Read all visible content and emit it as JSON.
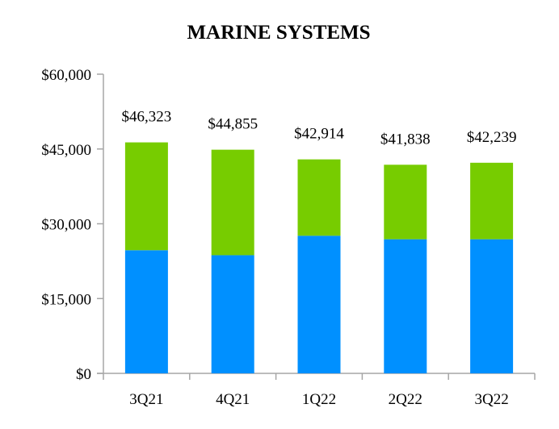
{
  "chart_data": {
    "type": "bar",
    "stacked": true,
    "title": "MARINE SYSTEMS",
    "xlabel": "",
    "ylabel": "",
    "categories": [
      "3Q21",
      "4Q21",
      "1Q22",
      "2Q22",
      "3Q22"
    ],
    "series": [
      {
        "color": "#0090ff",
        "values": [
          24700,
          23700,
          27600,
          26900,
          26900
        ]
      },
      {
        "color": "#77cc00",
        "values": [
          21623,
          21155,
          15314,
          14938,
          15339
        ]
      }
    ],
    "totals": [
      46323,
      44855,
      42914,
      41838,
      42239
    ],
    "total_labels": [
      "$46,323",
      "$44,855",
      "$42,914",
      "$41,838",
      "$42,239"
    ],
    "ylim": [
      0,
      60000
    ],
    "yticks": [
      0,
      15000,
      30000,
      45000,
      60000
    ],
    "ytick_labels": [
      "$0",
      "$15,000",
      "$30,000",
      "$45,000",
      "$60,000"
    ],
    "grid": false,
    "legend": "none"
  }
}
